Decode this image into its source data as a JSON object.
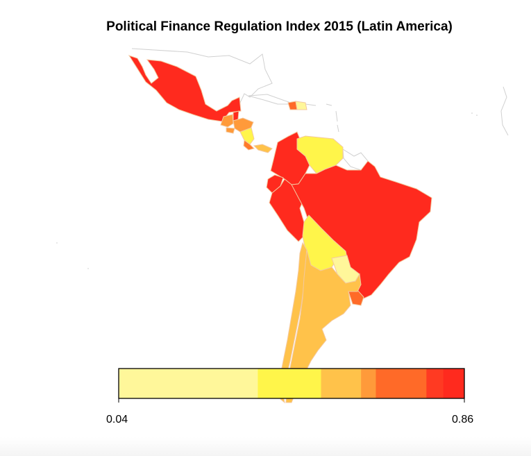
{
  "map": {
    "title": "Political Finance Regulation Index 2015 (Latin America)",
    "region": "Latin America",
    "colors": {
      "outline": "#d0d0d0",
      "border": "#f3c9a0",
      "background": "#ffffff"
    },
    "regions": [
      {
        "name": "Mexico",
        "fill": "#ff2a1e",
        "level": "highest"
      },
      {
        "name": "Guatemala",
        "fill": "#ff9a3a"
      },
      {
        "name": "Belize",
        "fill": "#ff2a1e"
      },
      {
        "name": "Honduras",
        "fill": "#ff9a3a"
      },
      {
        "name": "El Salvador",
        "fill": "#ff9a3a"
      },
      {
        "name": "Nicaragua",
        "fill": "#fff54a"
      },
      {
        "name": "Costa Rica",
        "fill": "#ff7a2a"
      },
      {
        "name": "Panama",
        "fill": "#ffc24a"
      },
      {
        "name": "Dominican Republic",
        "fill": "#fff79a"
      },
      {
        "name": "Haiti",
        "fill": "#ff6a28"
      },
      {
        "name": "Colombia",
        "fill": "#ff2a1e"
      },
      {
        "name": "Venezuela",
        "fill": "#fff54a"
      },
      {
        "name": "Ecuador",
        "fill": "#ff2a1e"
      },
      {
        "name": "Peru",
        "fill": "#ff2a1e"
      },
      {
        "name": "Brazil",
        "fill": "#ff2a1e"
      },
      {
        "name": "Bolivia",
        "fill": "#fff54a"
      },
      {
        "name": "Paraguay",
        "fill": "#fff79a"
      },
      {
        "name": "Uruguay",
        "fill": "#ff6a28"
      },
      {
        "name": "Chile",
        "fill": "#ffc24a"
      },
      {
        "name": "Argentina",
        "fill": "#ffc24a"
      }
    ]
  },
  "legend": {
    "min_label": "0.04",
    "max_label": "0.86",
    "range": [
      0.04,
      0.86
    ],
    "bins": [
      {
        "from": 0.04,
        "to": 0.37,
        "color": "#fff79a"
      },
      {
        "from": 0.37,
        "to": 0.52,
        "color": "#fff54a"
      },
      {
        "from": 0.52,
        "to": 0.615,
        "color": "#ffc24a"
      },
      {
        "from": 0.615,
        "to": 0.65,
        "color": "#ff9a3a"
      },
      {
        "from": 0.65,
        "to": 0.77,
        "color": "#ff6a28"
      },
      {
        "from": 0.77,
        "to": 0.81,
        "color": "#ff3a22"
      },
      {
        "from": 0.81,
        "to": 0.86,
        "color": "#ff2a1e"
      }
    ]
  }
}
